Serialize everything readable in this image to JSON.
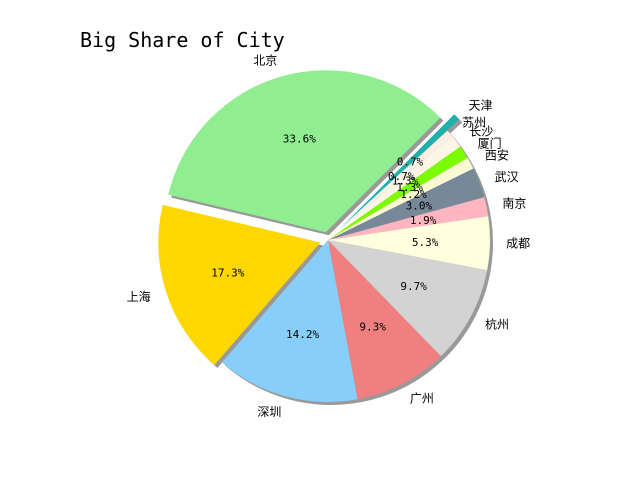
{
  "chart_data": {
    "type": "pie",
    "title": "Big Share of City",
    "categories": [
      "北京",
      "上海",
      "深圳",
      "广州",
      "杭州",
      "成都",
      "南京",
      "武汉",
      "西安",
      "厦门",
      "长沙",
      "苏州",
      "天津"
    ],
    "values": [
      33.6,
      17.3,
      14.2,
      9.3,
      9.7,
      5.3,
      1.9,
      3.0,
      1.2,
      1.3,
      1.3,
      0.7,
      0.7
    ],
    "value_labels": [
      "33.6%",
      "17.3%",
      "14.2%",
      "9.3%",
      "9.7%",
      "5.3%",
      "1.9%",
      "3.0%",
      "1.2%",
      "1.3%",
      "1.3%",
      "0.7%",
      "0.7%"
    ],
    "colors": [
      "#90ee90",
      "#ffd700",
      "#87cefa",
      "#f08080",
      "#d3d3d3",
      "#ffffe0",
      "#ffb6c1",
      "#778899",
      "#fafad2",
      "#7cfc00",
      "#fdf5e6",
      "#faf0e6",
      "#20b2aa"
    ],
    "explode": [
      0.05,
      0.05,
      0,
      0,
      0,
      0,
      0,
      0,
      0,
      0,
      0,
      0,
      0.1
    ],
    "start_angle_deg": 45,
    "counterclock": true,
    "shadow": true,
    "legend": "none"
  }
}
